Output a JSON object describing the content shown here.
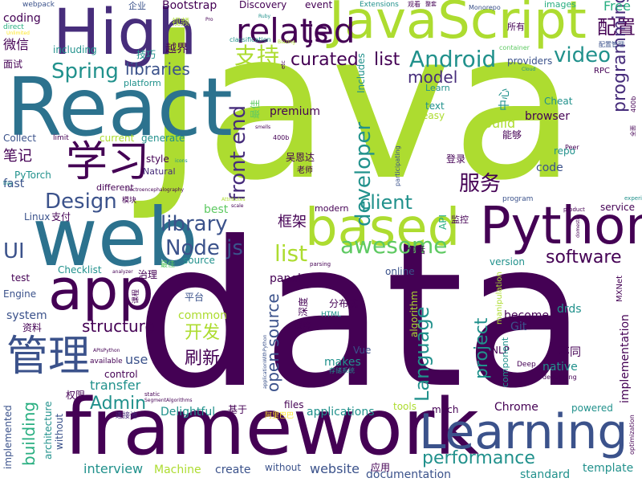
{
  "palette": {
    "deep_purple": "#440154",
    "indigo": "#472d7b",
    "slate_blue": "#3b528b",
    "steel_blue": "#2c728e",
    "teal": "#21918c",
    "sea_green": "#28ae80",
    "green": "#5ec962",
    "lime": "#addc30",
    "yellow": "#fde725"
  },
  "words": [
    {
      "text": "data",
      "color": "deep_purple"
    },
    {
      "text": "Java",
      "color": "lime"
    },
    {
      "text": "framework",
      "color": "deep_purple"
    },
    {
      "text": "React",
      "color": "steel_blue"
    },
    {
      "text": "web",
      "color": "steel_blue"
    },
    {
      "text": "JavaScript",
      "color": "lime"
    },
    {
      "text": "High",
      "color": "indigo"
    },
    {
      "text": "app",
      "color": "deep_purple"
    },
    {
      "text": "Python",
      "color": "deep_purple"
    },
    {
      "text": "based",
      "color": "lime"
    },
    {
      "text": "Learning",
      "color": "slate_blue"
    },
    {
      "text": "学习",
      "color": "deep_purple"
    },
    {
      "text": "管理",
      "color": "slate_blue"
    },
    {
      "text": "related",
      "color": "deep_purple"
    },
    {
      "text": "js",
      "color": "deep_purple"
    },
    {
      "text": "配置",
      "color": "deep_purple"
    },
    {
      "text": "Android",
      "color": "teal"
    },
    {
      "text": "curated",
      "color": "deep_purple"
    },
    {
      "text": "list",
      "color": "deep_purple"
    },
    {
      "text": "支持",
      "color": "lime"
    },
    {
      "text": "Spring",
      "color": "teal"
    },
    {
      "text": "libraries",
      "color": "slate_blue"
    },
    {
      "text": "Design",
      "color": "slate_blue"
    },
    {
      "text": "video",
      "color": "teal"
    },
    {
      "text": "model",
      "color": "indigo"
    },
    {
      "text": "programming",
      "color": "indigo"
    },
    {
      "text": "front end",
      "color": "indigo"
    },
    {
      "text": "developer",
      "color": "teal"
    },
    {
      "text": "client",
      "color": "teal"
    },
    {
      "text": "library",
      "color": "slate_blue"
    },
    {
      "text": "Node js",
      "color": "slate_blue"
    },
    {
      "text": "software",
      "color": "deep_purple"
    },
    {
      "text": "awesome",
      "color": "green"
    },
    {
      "text": "list",
      "color": "lime"
    },
    {
      "text": "structure",
      "color": "deep_purple"
    },
    {
      "text": "performance",
      "color": "teal"
    },
    {
      "text": "Language",
      "color": "teal"
    },
    {
      "text": "open source",
      "color": "slate_blue"
    },
    {
      "text": "project",
      "color": "teal"
    },
    {
      "text": "服务",
      "color": "deep_purple"
    },
    {
      "text": "框架",
      "color": "deep_purple"
    },
    {
      "text": "刷新",
      "color": "deep_purple"
    },
    {
      "text": "开发",
      "color": "lime"
    },
    {
      "text": "UI",
      "color": "slate_blue"
    },
    {
      "text": "Admin",
      "color": "teal"
    },
    {
      "text": "building",
      "color": "sea_green"
    },
    {
      "text": "interview",
      "color": "teal"
    },
    {
      "text": "Machine",
      "color": "lime"
    },
    {
      "text": "create",
      "color": "slate_blue"
    },
    {
      "text": "website",
      "color": "slate_blue"
    },
    {
      "text": "documentation",
      "color": "slate_blue"
    },
    {
      "text": "standard",
      "color": "teal"
    },
    {
      "text": "template",
      "color": "teal"
    },
    {
      "text": "implementation",
      "color": "deep_purple"
    },
    {
      "text": "Bootstrap",
      "color": "deep_purple"
    },
    {
      "text": "Discovery",
      "color": "deep_purple"
    },
    {
      "text": "event",
      "color": "deep_purple"
    },
    {
      "text": "Free",
      "color": "sea_green"
    },
    {
      "text": "images",
      "color": "sea_green"
    },
    {
      "text": "coding",
      "color": "deep_purple"
    },
    {
      "text": "webpack",
      "color": "slate_blue"
    },
    {
      "text": "企业",
      "color": "slate_blue"
    },
    {
      "text": "视频",
      "color": "lime"
    },
    {
      "text": "Extensions",
      "color": "teal"
    },
    {
      "text": "Monorepo",
      "color": "slate_blue"
    },
    {
      "text": "所有",
      "color": "deep_purple"
    },
    {
      "text": "direct",
      "color": "sea_green"
    },
    {
      "text": "Ruby",
      "color": "teal"
    },
    {
      "text": "微信",
      "color": "deep_purple"
    },
    {
      "text": "including",
      "color": "teal"
    },
    {
      "text": "技巧",
      "color": "teal"
    },
    {
      "text": "越界",
      "color": "deep_purple"
    },
    {
      "text": "classification",
      "color": "teal"
    },
    {
      "text": "container",
      "color": "green"
    },
    {
      "text": "面试",
      "color": "deep_purple"
    },
    {
      "text": "platform",
      "color": "teal"
    },
    {
      "text": "providers",
      "color": "slate_blue"
    },
    {
      "text": "RPC",
      "color": "deep_purple"
    },
    {
      "text": "中心",
      "color": "teal"
    },
    {
      "text": "Cheat",
      "color": "teal"
    },
    {
      "text": "premium",
      "color": "deep_purple"
    },
    {
      "text": "text",
      "color": "teal"
    },
    {
      "text": "easy",
      "color": "lime"
    },
    {
      "text": "Learn",
      "color": "teal"
    },
    {
      "text": "能够",
      "color": "deep_purple"
    },
    {
      "text": "browser",
      "color": "deep_purple"
    },
    {
      "text": "Collect",
      "color": "slate_blue"
    },
    {
      "text": "limit",
      "color": "deep_purple"
    },
    {
      "text": "current",
      "color": "lime"
    },
    {
      "text": "generate",
      "color": "teal"
    },
    {
      "text": "Build",
      "color": "lime"
    },
    {
      "text": "笔记",
      "color": "deep_purple"
    },
    {
      "text": "style",
      "color": "deep_purple"
    },
    {
      "text": "Natural",
      "color": "indigo"
    },
    {
      "text": "repo",
      "color": "teal"
    },
    {
      "text": "code",
      "color": "slate_blue"
    },
    {
      "text": "PyTorch",
      "color": "teal"
    },
    {
      "text": "fast",
      "color": "slate_blue"
    },
    {
      "text": "different",
      "color": "deep_purple"
    },
    {
      "text": "吴恩达",
      "color": "deep_purple"
    },
    {
      "text": "老师",
      "color": "deep_purple"
    },
    {
      "text": "登录",
      "color": "deep_purple"
    },
    {
      "text": "Linux",
      "color": "slate_blue"
    },
    {
      "text": "支付",
      "color": "deep_purple"
    },
    {
      "text": "best",
      "color": "green"
    },
    {
      "text": "modern",
      "color": "deep_purple"
    },
    {
      "text": "API",
      "color": "sea_green"
    },
    {
      "text": "监控",
      "color": "deep_purple"
    },
    {
      "text": "service",
      "color": "deep_purple"
    },
    {
      "text": "包括",
      "color": "deep_purple"
    },
    {
      "text": "source",
      "color": "teal"
    },
    {
      "text": "version",
      "color": "teal"
    },
    {
      "text": "test",
      "color": "deep_purple"
    },
    {
      "text": "Checklist",
      "color": "teal"
    },
    {
      "text": "治理",
      "color": "deep_purple"
    },
    {
      "text": "panel",
      "color": "deep_purple"
    },
    {
      "text": "online",
      "color": "slate_blue"
    },
    {
      "text": "Engine",
      "color": "slate_blue"
    },
    {
      "text": "平台",
      "color": "slate_blue"
    },
    {
      "text": "system",
      "color": "slate_blue"
    },
    {
      "text": "common",
      "color": "lime"
    },
    {
      "text": "分布式",
      "color": "deep_purple"
    },
    {
      "text": "become",
      "color": "deep_purple"
    },
    {
      "text": "drds",
      "color": "teal"
    },
    {
      "text": "资料",
      "color": "deep_purple"
    },
    {
      "text": "Git",
      "color": "slate_blue"
    },
    {
      "text": "NLP",
      "color": "deep_purple"
    },
    {
      "text": "不同",
      "color": "deep_purple"
    },
    {
      "text": "use",
      "color": "slate_blue"
    },
    {
      "text": "Vue",
      "color": "slate_blue"
    },
    {
      "text": "makes",
      "color": "teal"
    },
    {
      "text": "native",
      "color": "teal"
    },
    {
      "text": "transfer",
      "color": "teal"
    },
    {
      "text": "control",
      "color": "deep_purple"
    },
    {
      "text": "权限",
      "color": "deep_purple"
    },
    {
      "text": "files",
      "color": "deep_purple"
    },
    {
      "text": "tools",
      "color": "lime"
    },
    {
      "text": "Chrome",
      "color": "deep_purple"
    },
    {
      "text": "powered",
      "color": "teal"
    },
    {
      "text": "Delightful",
      "color": "teal"
    },
    {
      "text": "基于",
      "color": "deep_purple"
    },
    {
      "text": "applications",
      "color": "teal"
    },
    {
      "text": "much",
      "color": "deep_purple"
    },
    {
      "text": "architecture",
      "color": "teal"
    },
    {
      "text": "implemented",
      "color": "slate_blue"
    },
    {
      "text": "without",
      "color": "slate_blue"
    },
    {
      "text": "应用",
      "color": "deep_purple"
    },
    {
      "text": "深度",
      "color": "deep_purple"
    },
    {
      "text": "连接池",
      "color": "indigo"
    },
    {
      "text": "available",
      "color": "deep_purple"
    },
    {
      "text": "static",
      "color": "deep_purple"
    },
    {
      "text": "HTML",
      "color": "teal"
    },
    {
      "text": "manipulation",
      "color": "lime"
    },
    {
      "text": "algorithm",
      "color": "lime"
    },
    {
      "text": "component",
      "color": "teal"
    },
    {
      "text": "sheet",
      "color": "lime"
    },
    {
      "text": "Processing",
      "color": "teal"
    },
    {
      "text": "REST",
      "color": "lime"
    },
    {
      "text": "parsing",
      "color": "deep_purple"
    },
    {
      "text": "debugging",
      "color": "deep_purple"
    },
    {
      "text": "Deep",
      "color": "deep_purple"
    },
    {
      "text": "optimization",
      "color": "deep_purple"
    },
    {
      "text": "experience",
      "color": "teal"
    },
    {
      "text": "product",
      "color": "deep_purple"
    },
    {
      "text": "program",
      "color": "slate_blue"
    },
    {
      "text": "participating",
      "color": "slate_blue"
    },
    {
      "text": "MXNet",
      "color": "deep_purple"
    },
    {
      "text": "400b",
      "color": "deep_purple"
    },
    {
      "text": "Peer",
      "color": "deep_purple"
    },
    {
      "text": "Includes",
      "color": "teal"
    },
    {
      "text": "最佳",
      "color": "green"
    },
    {
      "text": "课程",
      "color": "deep_purple"
    },
    {
      "text": "存储系统",
      "color": "teal"
    },
    {
      "text": "阿里巴巴",
      "color": "yellow"
    },
    {
      "text": "Unlimited",
      "color": "yellow"
    },
    {
      "text": "Electroencephalography",
      "color": "deep_purple"
    },
    {
      "text": "SegmentAlgorithms",
      "color": "deep_purple"
    },
    {
      "text": "APIsPython",
      "color": "deep_purple"
    },
    {
      "text": "scale",
      "color": "deep_purple"
    },
    {
      "text": "etc",
      "color": "deep_purple"
    },
    {
      "text": "Day",
      "color": "teal"
    },
    {
      "text": "icons",
      "color": "teal"
    },
    {
      "text": "smells",
      "color": "deep_purple"
    },
    {
      "text": "Cloud",
      "color": "teal"
    },
    {
      "text": "模块",
      "color": "deep_purple"
    },
    {
      "text": "观看",
      "color": "deep_purple"
    },
    {
      "text": "整套",
      "color": "deep_purple"
    },
    {
      "text": "Pro",
      "color": "deep_purple"
    },
    {
      "text": "Blazing",
      "color": "lime"
    },
    {
      "text": "配置管理",
      "color": "slate_blue"
    },
    {
      "text": "domestic",
      "color": "deep_purple"
    },
    {
      "text": "analyzer",
      "color": "deep_purple"
    },
    {
      "text": "applicationWithPython",
      "color": "slate_blue"
    },
    {
      "text": "Large",
      "color": "deep_purple"
    },
    {
      "text": "Attributes",
      "color": "lime"
    },
    {
      "text": "全面",
      "color": "deep_purple"
    },
    {
      "text": "功能",
      "color": "deep_purple"
    }
  ]
}
